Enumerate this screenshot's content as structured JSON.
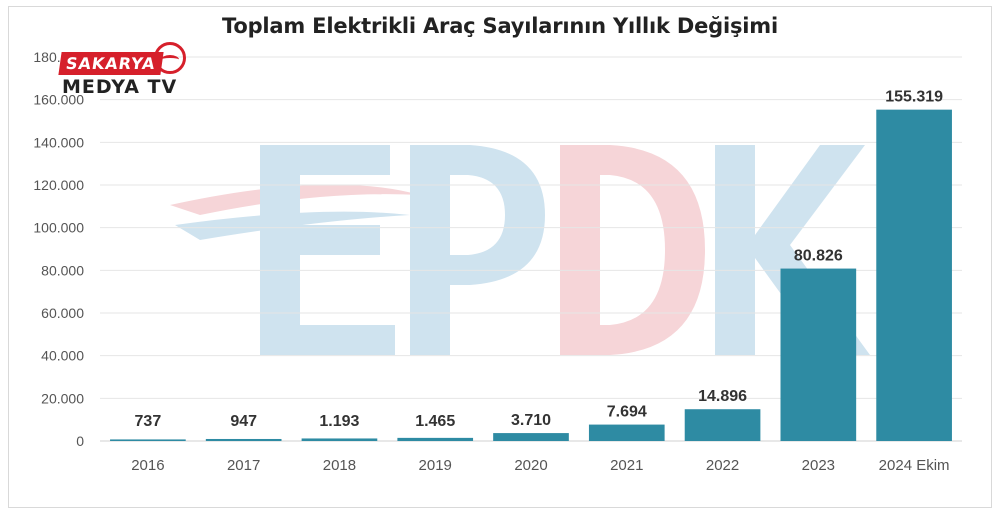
{
  "chart_data": {
    "type": "bar",
    "title": "Toplam Elektrikli Araç Sayılarının Yıllık Değişimi",
    "xlabel": "",
    "ylabel": "",
    "categories": [
      "2016",
      "2017",
      "2018",
      "2019",
      "2020",
      "2021",
      "2022",
      "2023",
      "2024 Ekim"
    ],
    "values": [
      737,
      947,
      1193,
      1465,
      3710,
      7694,
      14896,
      80826,
      155319
    ],
    "value_labels": [
      "737",
      "947",
      "1.193",
      "1.465",
      "3.710",
      "7.694",
      "14.896",
      "80.826",
      "155.319"
    ],
    "ylim": [
      0,
      180000
    ],
    "yticks": [
      0,
      20000,
      40000,
      60000,
      80000,
      100000,
      120000,
      140000,
      160000,
      180000
    ],
    "ytick_labels": [
      "0",
      "20.000",
      "40.000",
      "60.000",
      "80.000",
      "100.000",
      "120.000",
      "140.000",
      "160.000",
      "180.000"
    ],
    "grid": true,
    "bar_color": "#2e8ba3",
    "grid_color": "#e6e6e6"
  },
  "watermark": {
    "logo_top": "SAKARYA",
    "logo_bottom": "MEDYA TV",
    "logo_color": "#d6202b",
    "background_mark": "EPDK",
    "mark_blue": "#cfe3ef",
    "mark_red": "#f6d5d8"
  }
}
